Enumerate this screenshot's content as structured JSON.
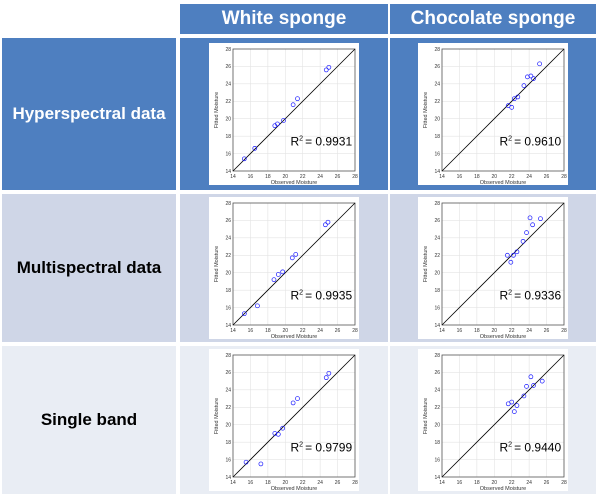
{
  "columns": [
    "White sponge",
    "Chocolate sponge"
  ],
  "rows": [
    {
      "label": "Hyperspectral data",
      "bg": "#4e7fc0",
      "text_color": "#ffffff"
    },
    {
      "label": "Multispectral data",
      "bg": "#cfd6e7",
      "text_color": "#000000"
    },
    {
      "label": "Single band",
      "bg": "#e9edf4",
      "text_color": "#000000"
    }
  ],
  "colors": {
    "header_bg": "#4e7fc0",
    "point": "#1a1aff",
    "line": "#000000"
  },
  "chart_data": [
    {
      "type": "scatter",
      "row": 0,
      "col": 0,
      "xlabel": "Observed Moisture",
      "ylabel": "Fitted Moisture",
      "xlim": [
        14,
        28
      ],
      "ylim": [
        14,
        28
      ],
      "xticks": [
        14,
        16,
        18,
        20,
        22,
        24,
        26,
        28
      ],
      "yticks": [
        14,
        16,
        18,
        20,
        22,
        24,
        26,
        28
      ],
      "r2_value": "= 0.9931",
      "points": [
        [
          15.3,
          15.4
        ],
        [
          16.5,
          16.6
        ],
        [
          18.8,
          19.2
        ],
        [
          19.1,
          19.4
        ],
        [
          19.8,
          19.8
        ],
        [
          20.9,
          21.6
        ],
        [
          21.4,
          22.3
        ],
        [
          24.7,
          25.6
        ],
        [
          25.0,
          25.9
        ]
      ]
    },
    {
      "type": "scatter",
      "row": 0,
      "col": 1,
      "xlabel": "Observed Moisture",
      "ylabel": "Fitted Moisture",
      "xlim": [
        14,
        28
      ],
      "ylim": [
        14,
        28
      ],
      "xticks": [
        14,
        16,
        18,
        20,
        22,
        24,
        26,
        28
      ],
      "yticks": [
        14,
        16,
        18,
        20,
        22,
        24,
        26,
        28
      ],
      "r2_value": "= 0.9610",
      "points": [
        [
          21.6,
          21.5
        ],
        [
          22.0,
          21.3
        ],
        [
          22.3,
          22.3
        ],
        [
          22.7,
          22.5
        ],
        [
          23.4,
          23.8
        ],
        [
          23.8,
          24.8
        ],
        [
          24.2,
          24.9
        ],
        [
          24.5,
          24.6
        ],
        [
          25.2,
          26.3
        ]
      ]
    },
    {
      "type": "scatter",
      "row": 1,
      "col": 0,
      "xlabel": "Observed Moisture",
      "ylabel": "Fitted Moisture",
      "xlim": [
        14,
        28
      ],
      "ylim": [
        14,
        28
      ],
      "xticks": [
        14,
        16,
        18,
        20,
        22,
        24,
        26,
        28
      ],
      "yticks": [
        14,
        16,
        18,
        20,
        22,
        24,
        26,
        28
      ],
      "r2_value": "= 0.9935",
      "points": [
        [
          15.3,
          15.3
        ],
        [
          16.8,
          16.2
        ],
        [
          18.7,
          19.2
        ],
        [
          19.2,
          19.8
        ],
        [
          19.7,
          20.1
        ],
        [
          20.8,
          21.7
        ],
        [
          21.2,
          22.1
        ],
        [
          24.6,
          25.5
        ],
        [
          24.9,
          25.8
        ]
      ]
    },
    {
      "type": "scatter",
      "row": 1,
      "col": 1,
      "xlabel": "Observed Moisture",
      "ylabel": "Fitted Moisture",
      "xlim": [
        14,
        28
      ],
      "ylim": [
        14,
        28
      ],
      "xticks": [
        14,
        16,
        18,
        20,
        22,
        24,
        26,
        28
      ],
      "yticks": [
        14,
        16,
        18,
        20,
        22,
        24,
        26,
        28
      ],
      "r2_value": "= 0.9336",
      "points": [
        [
          21.5,
          22.0
        ],
        [
          21.9,
          21.2
        ],
        [
          22.6,
          22.4
        ],
        [
          23.3,
          23.6
        ],
        [
          23.7,
          24.6
        ],
        [
          24.1,
          26.3
        ],
        [
          24.4,
          25.5
        ],
        [
          25.3,
          26.2
        ],
        [
          22.2,
          22.0
        ]
      ]
    },
    {
      "type": "scatter",
      "row": 2,
      "col": 0,
      "xlabel": "Observed Moisture",
      "ylabel": "Fitted Moisture",
      "xlim": [
        14,
        28
      ],
      "ylim": [
        14,
        28
      ],
      "xticks": [
        14,
        16,
        18,
        20,
        22,
        24,
        26,
        28
      ],
      "yticks": [
        14,
        16,
        18,
        20,
        22,
        24,
        26,
        28
      ],
      "r2_value": "= 0.9799",
      "points": [
        [
          15.5,
          15.7
        ],
        [
          17.2,
          15.5
        ],
        [
          18.8,
          19.0
        ],
        [
          19.2,
          18.9
        ],
        [
          19.7,
          19.6
        ],
        [
          20.9,
          22.5
        ],
        [
          21.4,
          23.0
        ],
        [
          24.7,
          25.4
        ],
        [
          25.0,
          25.9
        ]
      ]
    },
    {
      "type": "scatter",
      "row": 2,
      "col": 1,
      "xlabel": "Observed Moisture",
      "ylabel": "Fitted Moisture",
      "xlim": [
        14,
        28
      ],
      "ylim": [
        14,
        28
      ],
      "xticks": [
        14,
        16,
        18,
        20,
        22,
        24,
        26,
        28
      ],
      "yticks": [
        14,
        16,
        18,
        20,
        22,
        24,
        26,
        28
      ],
      "r2_value": "= 0.9440",
      "points": [
        [
          21.6,
          22.4
        ],
        [
          22.0,
          22.6
        ],
        [
          22.3,
          21.5
        ],
        [
          22.6,
          22.2
        ],
        [
          23.4,
          23.3
        ],
        [
          23.7,
          24.4
        ],
        [
          24.2,
          25.5
        ],
        [
          24.5,
          24.5
        ],
        [
          25.5,
          25.0
        ]
      ]
    }
  ]
}
